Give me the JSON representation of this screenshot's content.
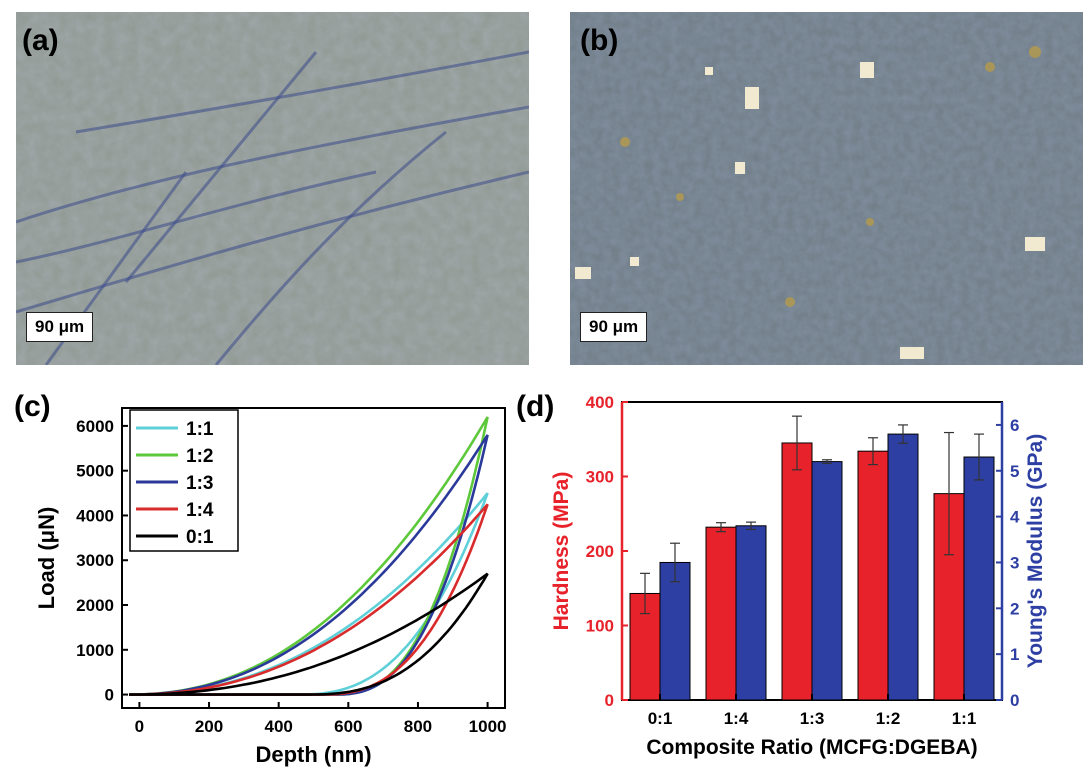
{
  "panels": {
    "a": {
      "label": "(a)",
      "scale_bar": "90 μm"
    },
    "b": {
      "label": "(b)",
      "scale_bar": "90 μm"
    },
    "c": {
      "label": "(c)"
    },
    "d": {
      "label": "(d)"
    }
  },
  "chart_data": [
    {
      "id": "c",
      "type": "line",
      "xlabel": "Depth (nm)",
      "ylabel": "Load (μN)",
      "xlim": [
        -50,
        1050
      ],
      "ylim": [
        -300,
        6400
      ],
      "xticks": [
        0,
        200,
        400,
        600,
        800,
        1000
      ],
      "yticks": [
        0,
        1000,
        2000,
        3000,
        4000,
        5000,
        6000
      ],
      "legend_position": "top-left",
      "series": [
        {
          "name": "1:1",
          "color": "#5fd0d8",
          "max_depth": 1000,
          "max_load": 4500,
          "unload_residual_depth": 450
        },
        {
          "name": "1:2",
          "color": "#5cc83a",
          "max_depth": 1000,
          "max_load": 6200,
          "unload_residual_depth": 560
        },
        {
          "name": "1:3",
          "color": "#2b3a9a",
          "max_depth": 1000,
          "max_load": 5800,
          "unload_residual_depth": 560
        },
        {
          "name": "1:4",
          "color": "#d92b2b",
          "max_depth": 1000,
          "max_load": 4250,
          "unload_residual_depth": 520
        },
        {
          "name": "0:1",
          "color": "#000000",
          "max_depth": 1000,
          "max_load": 2700,
          "unload_residual_depth": 480
        }
      ]
    },
    {
      "id": "d",
      "type": "bar",
      "xlabel": "Composite Ratio (MCFG:DGEBA)",
      "ylabel_left": "Hardness (MPa)",
      "ylabel_right": "Young's Modulus (GPa)",
      "categories": [
        "0:1",
        "1:4",
        "1:3",
        "1:2",
        "1:1"
      ],
      "ylim_left": [
        0,
        400
      ],
      "ylim_right": [
        0,
        6.5
      ],
      "yticks_left": [
        0,
        100,
        200,
        300,
        400
      ],
      "yticks_right": [
        0,
        1,
        2,
        3,
        4,
        5,
        6
      ],
      "series": [
        {
          "name": "Hardness",
          "axis": "left",
          "color": "#e8222a",
          "values": [
            143,
            232,
            345,
            334,
            277
          ],
          "errors": [
            27,
            6,
            36,
            18,
            82
          ]
        },
        {
          "name": "Young's Modulus",
          "axis": "right",
          "color": "#2e3fa3",
          "values": [
            3.0,
            3.8,
            5.2,
            5.8,
            5.3
          ],
          "errors": [
            0.42,
            0.08,
            0.04,
            0.2,
            0.5
          ]
        }
      ]
    }
  ]
}
